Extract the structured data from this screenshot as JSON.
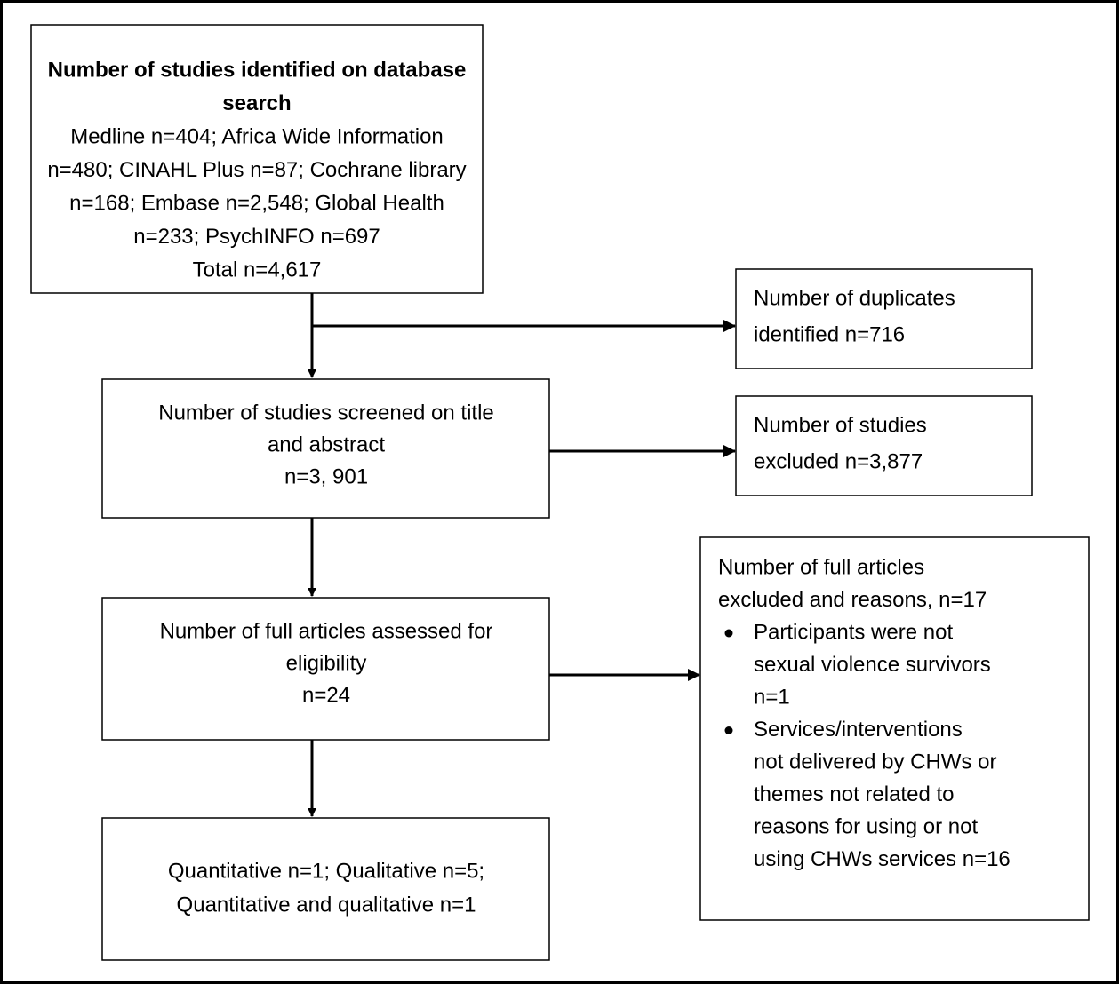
{
  "nodes": [
    {
      "title": [
        "Number of studies identified on database",
        "search"
      ],
      "lines": [
        "Medline n=404; Africa Wide Information",
        "n=480; CINAHL Plus n=87; Cochrane library",
        "n=168; Embase n=2,548; Global Health",
        "n=233; PsychINFO n=697",
        "Total n=4,617"
      ]
    },
    {
      "lines": [
        "Number of duplicates",
        "identified n=716"
      ]
    },
    {
      "lines": [
        "Number of studies screened on title",
        "and abstract",
        "n=3, 901"
      ]
    },
    {
      "lines": [
        "Number of studies",
        "excluded n=3,877"
      ]
    },
    {
      "lines": [
        "Number of full articles assessed for",
        "eligibility",
        "n=24"
      ]
    },
    {
      "lines": [
        "Number of full articles",
        "excluded and reasons, n=17"
      ],
      "bullets": [
        [
          "Participants were not",
          "sexual violence survivors",
          "n=1"
        ],
        [
          "Services/interventions",
          "not delivered by CHWs or",
          "themes not related to",
          "reasons for using or not",
          "using CHWs services n=16"
        ]
      ]
    },
    {
      "lines": [
        "Quantitative n=1; Qualitative n=5;",
        "Quantitative and qualitative n=1"
      ]
    }
  ]
}
